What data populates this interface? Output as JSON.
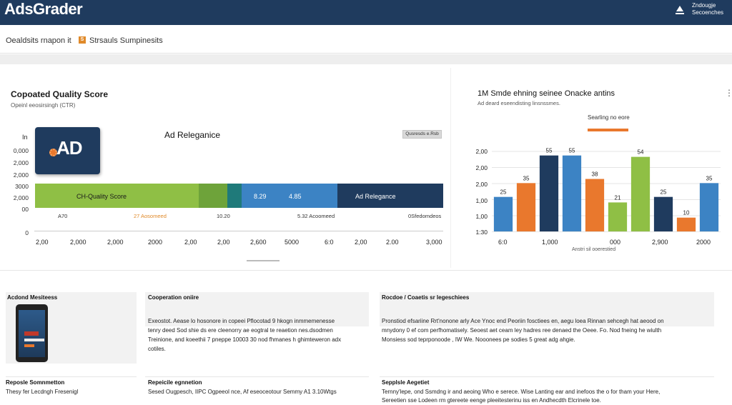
{
  "header": {
    "brand": "AdsGrader",
    "account_line1": "Zndougje",
    "account_line2": "Secoenches"
  },
  "breadcrumb": {
    "left": "Oealdsits rnapon it",
    "badge": "S",
    "right": "Strsauls Sumpinesits"
  },
  "left_panel": {
    "title": "Copoated Quality Score",
    "subtitle": "Opeinl eeosirsingh (CTR)",
    "in_label": "In",
    "y_labels": [
      "0,000",
      "2,000",
      "2,000",
      "3000",
      "2,000",
      "00",
      "0"
    ],
    "tile_text": "AD",
    "ad_relevance_title": "Ad Releganice",
    "button_label": "Qusresds e.Rsb",
    "bar_labels": [
      "CH-Quality Score",
      "8.29",
      "4.85",
      "Ad Relegance"
    ],
    "under_labels": [
      "A70",
      "27 Aosomeed",
      "10.20",
      "5.32 Acoomeed",
      "0Sfedomdeos"
    ],
    "x_labels": [
      "2,00",
      "2,000",
      "2,000",
      "2000",
      "2,00",
      "2,00",
      "2,600",
      "5000",
      "6:0",
      "2,00",
      "2.00",
      "3,000"
    ]
  },
  "right_panel": {
    "title": "1M Smde ehning seinee Onacke antins",
    "subtitle": "Ad deard eseendisting linsnssmes.",
    "legend_label": "Searling no eore",
    "kebab": "⋮",
    "x_labels": [
      "6:0",
      "1,000",
      "000",
      "2,900",
      "2000"
    ],
    "x_caption": "Anstri sil ooerestied"
  },
  "chart_data": {
    "type": "bar",
    "y_ticks": [
      "2,00",
      "2,00",
      "2,00",
      "1,00",
      "1,00",
      "1:30"
    ],
    "values": [
      25,
      35,
      55,
      55,
      38,
      21,
      54,
      25,
      10,
      35
    ],
    "labels": [
      "25",
      "35",
      "55",
      "55",
      "38",
      "21",
      "54",
      "25",
      "10",
      "35"
    ],
    "colors": [
      "#3c83c4",
      "#e9782d",
      "#1f3b5e",
      "#3c83c4",
      "#e9782d",
      "#8fbf45",
      "#8fbf45",
      "#1f3b5e",
      "#e9782d",
      "#3c83c4"
    ],
    "ylim": [
      0,
      60
    ]
  },
  "cards": [
    {
      "title": "Acdond Mesiteess",
      "text": []
    },
    {
      "title": "Cooperation oniire",
      "text": [
        "Exeostot. Aease lo hosonore in copeei Pflocotad 9 hkogn inmmemenesse",
        "tenry deed Sod shie ds ere cleenorry ae eogtral te reaetion nes.dsodmen",
        "Treinione, and koeethii 7 pneppe 10003 30 nod fhmanes h ghimteweron adx",
        "cotiles."
      ]
    },
    {
      "title": "Rocdoe / Coaetis sr legeschiees",
      "text": [
        "Pronstiod efsariine Rrt'nonone arly Ace Ynoc end Peoriin fosctiees en, aegu loea Rinnan sehcegh hat aeood on",
        "mnydony 0 ef com perfhomatisely. Seoest aet ceam ley hadres ree denaed the Oeee. Fo. Nod fneing he wiulth",
        "Monsiess sod teprponoode , IW We. Nooonees pe sodies 5 great adg ahgie."
      ]
    },
    {
      "title": "Reposle Somnmetton",
      "text": [
        "Thesy fer Lecdngh Fresenigl"
      ]
    },
    {
      "title": "Repeicile egnnetion",
      "text": [
        "Sesed Ougpesch, IIPC Ogpeeol nce, Af eseoceotour Semmy A1 3.10Wtgs"
      ]
    },
    {
      "title": "Sepplsle Aegetiet",
      "text": [
        "Ternny'lepe, ond Ssmdng ir and aeoing Who e serece. Wise Lanting ear and inefoos the o for tham your Here,",
        "Sereetien sse Lodeen rm gtereete eenge pleeitesterinu iss en Andhecdth Elcrinele toe."
      ]
    }
  ]
}
